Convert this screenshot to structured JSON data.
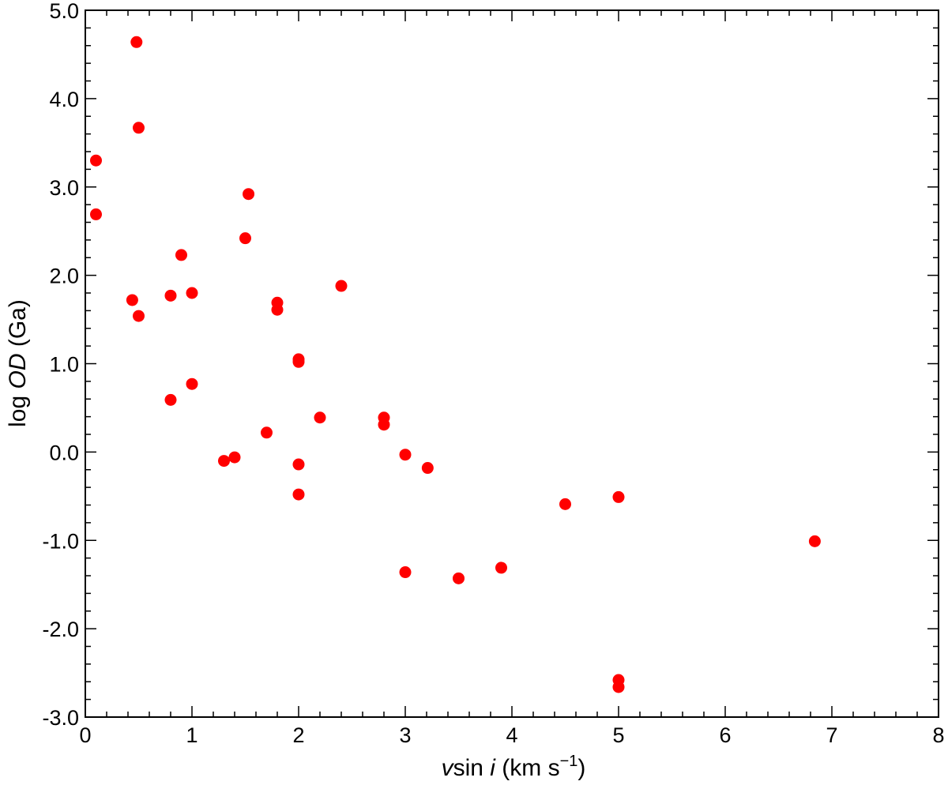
{
  "chart_data": {
    "type": "scatter",
    "title": "",
    "xlabel": {
      "italic": "v",
      "plain": "sin ",
      "italic2": "i",
      "unit": " (km s",
      "sup": "−1",
      "close": ")"
    },
    "ylabel": {
      "prefix": "log ",
      "italic": "OD",
      "suffix": " (Ga)"
    },
    "xlim": [
      0,
      8
    ],
    "ylim": [
      -3.0,
      5.0
    ],
    "x_ticks": [
      "0",
      "1",
      "2",
      "3",
      "4",
      "5",
      "6",
      "7",
      "8"
    ],
    "y_ticks": [
      "-3.0",
      "-2.0",
      "-1.0",
      "0.0",
      "1.0",
      "2.0",
      "3.0",
      "4.0",
      "5.0"
    ],
    "marker_color": "#ff0000",
    "grid": false,
    "points": [
      {
        "x": 0.1,
        "y": 3.3
      },
      {
        "x": 0.1,
        "y": 2.69
      },
      {
        "x": 0.48,
        "y": 4.64
      },
      {
        "x": 0.5,
        "y": 3.67
      },
      {
        "x": 0.44,
        "y": 1.72
      },
      {
        "x": 0.5,
        "y": 1.54
      },
      {
        "x": 0.8,
        "y": 1.77
      },
      {
        "x": 0.8,
        "y": 0.59
      },
      {
        "x": 0.9,
        "y": 2.23
      },
      {
        "x": 1.0,
        "y": 1.8
      },
      {
        "x": 1.0,
        "y": 0.77
      },
      {
        "x": 1.3,
        "y": -0.1
      },
      {
        "x": 1.4,
        "y": -0.06
      },
      {
        "x": 1.5,
        "y": 2.42
      },
      {
        "x": 1.53,
        "y": 2.92
      },
      {
        "x": 1.7,
        "y": 0.22
      },
      {
        "x": 1.8,
        "y": 1.69
      },
      {
        "x": 1.8,
        "y": 1.61
      },
      {
        "x": 2.0,
        "y": 1.05
      },
      {
        "x": 2.0,
        "y": 1.02
      },
      {
        "x": 2.0,
        "y": -0.14
      },
      {
        "x": 2.0,
        "y": -0.48
      },
      {
        "x": 2.2,
        "y": 0.39
      },
      {
        "x": 2.4,
        "y": 1.88
      },
      {
        "x": 2.8,
        "y": 0.39
      },
      {
        "x": 2.8,
        "y": 0.31
      },
      {
        "x": 3.0,
        "y": -0.03
      },
      {
        "x": 3.0,
        "y": -1.36
      },
      {
        "x": 3.21,
        "y": -0.18
      },
      {
        "x": 3.5,
        "y": -1.43
      },
      {
        "x": 3.9,
        "y": -1.31
      },
      {
        "x": 4.5,
        "y": -0.59
      },
      {
        "x": 5.0,
        "y": -0.51
      },
      {
        "x": 5.0,
        "y": -2.58
      },
      {
        "x": 5.0,
        "y": -2.66
      },
      {
        "x": 6.84,
        "y": -1.01
      }
    ]
  }
}
